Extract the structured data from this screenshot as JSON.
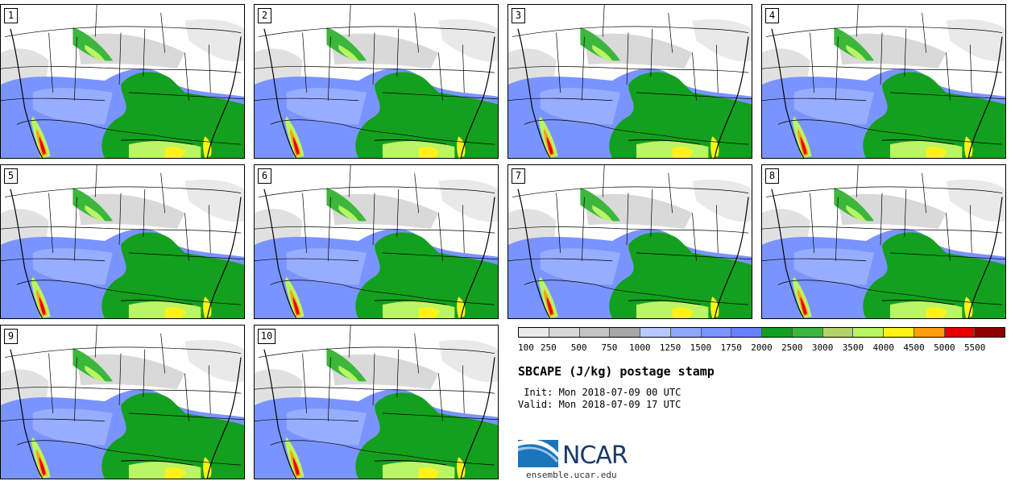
{
  "panels": [
    {
      "label": "1"
    },
    {
      "label": "2"
    },
    {
      "label": "3"
    },
    {
      "label": "4"
    },
    {
      "label": "5"
    },
    {
      "label": "6"
    },
    {
      "label": "7"
    },
    {
      "label": "8"
    },
    {
      "label": "9"
    },
    {
      "label": "10"
    }
  ],
  "colorbar": {
    "colors": [
      "#ebebeb",
      "#d7d7d7",
      "#c4c4c4",
      "#a6a6a6",
      "#b9c9ff",
      "#8ea7ff",
      "#7a94ff",
      "#6880ff",
      "#13a01e",
      "#3cb73c",
      "#b4d46a",
      "#b9f564",
      "#fff21a",
      "#ff9f0e",
      "#e60000",
      "#8c0000"
    ],
    "labels": [
      "100",
      "250",
      "500",
      "750",
      "1000",
      "1250",
      "1500",
      "1750",
      "2000",
      "2500",
      "3000",
      "3500",
      "4000",
      "4500",
      "5000",
      "5500"
    ]
  },
  "title": "SBCAPE (J/kg) postage stamp",
  "init_line": " Init: Mon 2018-07-09 00 UTC",
  "valid_line": "Valid: Mon 2018-07-09 17 UTC",
  "logo": {
    "text": "NCAR",
    "url": "ensemble.ucar.edu"
  }
}
